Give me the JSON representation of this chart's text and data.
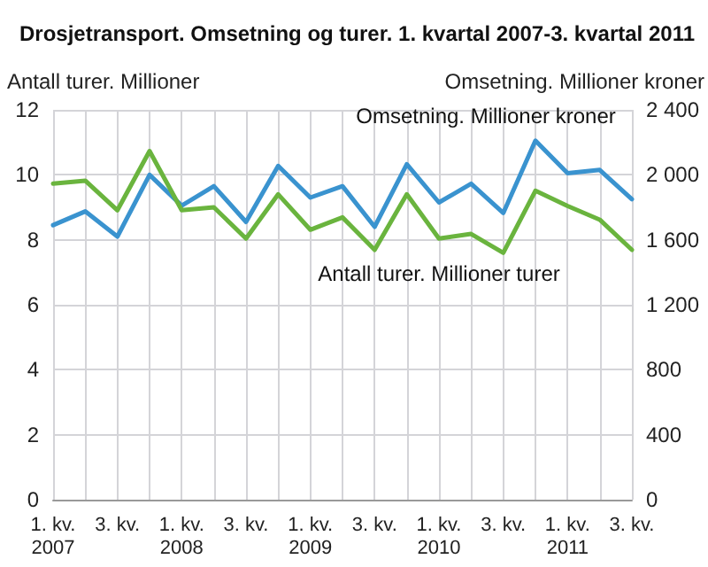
{
  "chart_data": {
    "type": "line",
    "title": "Drosjetransport. Omsetning og turer. 1. kvartal 2007-3. kvartal 2011",
    "ylabel": "Antall turer. Millioner",
    "y2label": "Omsetning. Millioner kroner",
    "categories": [
      "1. kv.\n2007",
      null,
      "3. kv.",
      null,
      "1. kv.\n2008",
      null,
      "3. kv.",
      null,
      "1. kv.\n2009",
      null,
      "3. kv.",
      null,
      "1. kv.\n2010",
      null,
      "3. kv.",
      null,
      "1. kv.\n2011",
      null,
      "3. kv."
    ],
    "series": [
      {
        "name": "Omsetning. Millioner kroner",
        "color": "#3a93cf",
        "axis": "y2",
        "values": [
          1690,
          1775,
          1620,
          2000,
          1810,
          1930,
          1710,
          2055,
          1860,
          1930,
          1680,
          2065,
          1830,
          1945,
          1765,
          2210,
          2010,
          2030,
          1850
        ]
      },
      {
        "name": "Antall turer. Millioner turer",
        "color": "#6ab43e",
        "values": [
          9.73,
          9.82,
          8.91,
          10.73,
          8.91,
          9.0,
          8.04,
          9.4,
          8.31,
          8.69,
          7.69,
          9.4,
          8.04,
          8.18,
          7.6,
          9.51,
          9.04,
          8.62,
          7.69
        ]
      }
    ],
    "ylim": [
      0,
      12
    ],
    "yticks": [
      0,
      2,
      4,
      6,
      8,
      10,
      12
    ],
    "y2lim": [
      0,
      2400
    ],
    "y2ticks": [
      0,
      {
        "value": 400,
        "label": "400"
      },
      {
        "value": 800,
        "label": "800"
      },
      {
        "value": 1200,
        "label": "1 200"
      },
      {
        "value": 1600,
        "label": "1 600"
      },
      {
        "value": 2000,
        "label": "2 000"
      },
      {
        "value": 2400,
        "label": "2 400"
      }
    ],
    "grid": true,
    "legend": false,
    "marker": "none",
    "line_style": "solid"
  }
}
